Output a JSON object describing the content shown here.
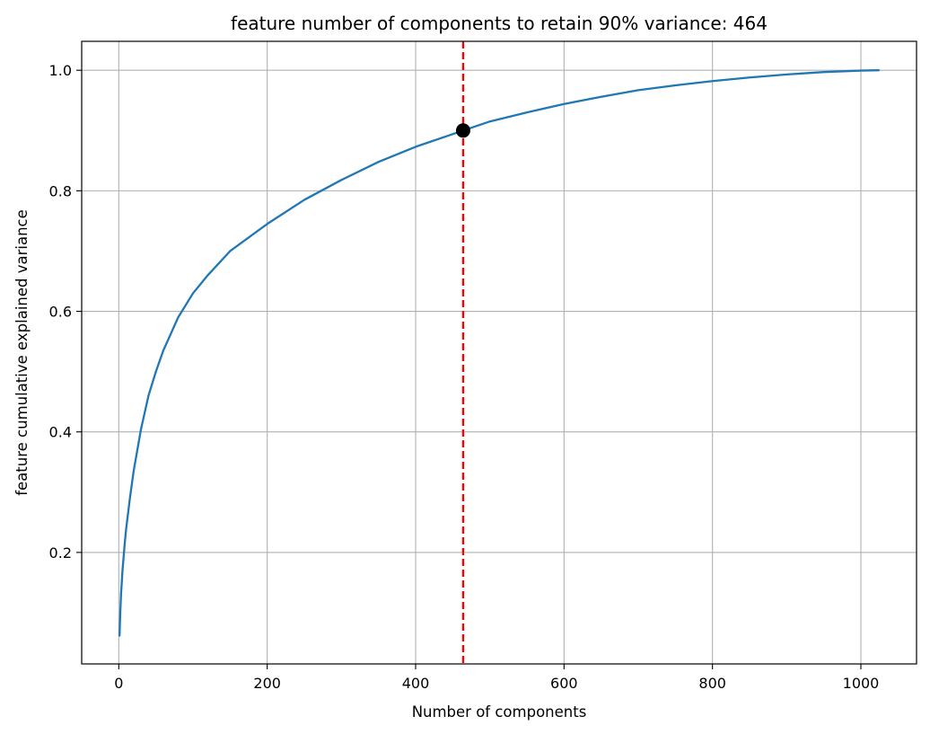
{
  "chart_data": {
    "type": "line",
    "title": "feature number of components to retain 90% variance: 464",
    "xlabel": "Number of components",
    "ylabel": "feature cumulative explained variance",
    "xlim": [
      -50,
      1075
    ],
    "ylim": [
      0.015,
      1.048
    ],
    "grid": true,
    "xticks": [
      0,
      200,
      400,
      600,
      800,
      1000
    ],
    "yticks": [
      0.2,
      0.4,
      0.6,
      0.8,
      1.0
    ],
    "series": [
      {
        "color": "#1f77b4",
        "x": [
          1,
          2,
          3,
          5,
          8,
          10,
          15,
          20,
          30,
          40,
          50,
          60,
          80,
          100,
          120,
          150,
          200,
          250,
          300,
          350,
          400,
          464,
          500,
          550,
          600,
          650,
          700,
          750,
          800,
          850,
          900,
          950,
          1000,
          1024
        ],
        "y": [
          0.062,
          0.1,
          0.13,
          0.17,
          0.215,
          0.24,
          0.29,
          0.335,
          0.405,
          0.46,
          0.5,
          0.535,
          0.59,
          0.63,
          0.66,
          0.7,
          0.745,
          0.785,
          0.818,
          0.848,
          0.873,
          0.9,
          0.915,
          0.93,
          0.944,
          0.956,
          0.967,
          0.975,
          0.982,
          0.988,
          0.993,
          0.997,
          0.9995,
          1.0
        ]
      }
    ],
    "threshold": {
      "x": 464,
      "color": "#ff0000",
      "style": "dashed"
    },
    "marker": {
      "x": 464,
      "y": 0.9,
      "color": "#000000"
    }
  }
}
